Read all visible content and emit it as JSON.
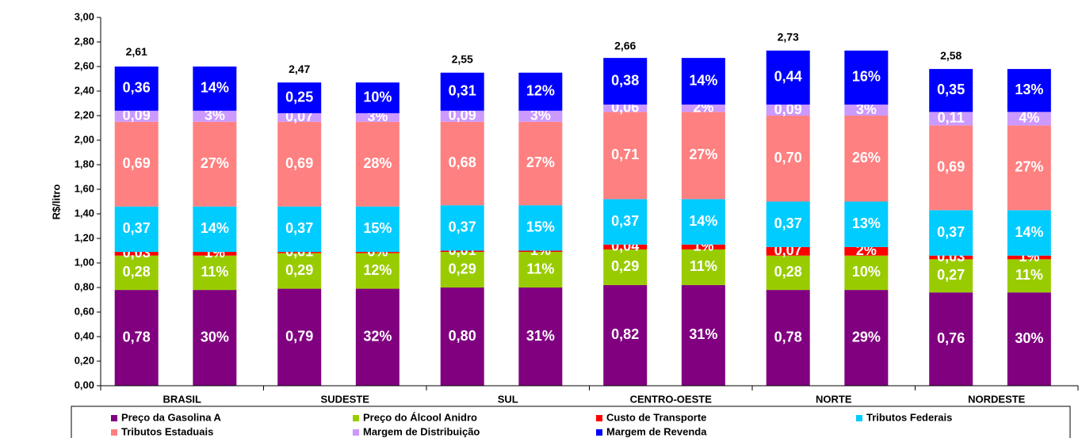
{
  "chart_data": {
    "type": "stacked_bar",
    "y_label": "R$/litro",
    "categories": [
      "BRASIL",
      "SUDESTE",
      "SUL",
      "CENTRO-OESTE",
      "NORTE",
      "NORDESTE"
    ],
    "ylim": [
      0,
      3
    ],
    "yticks": [
      {
        "value": 0,
        "label": "0,00"
      },
      {
        "value": 0.2,
        "label": "0,20"
      },
      {
        "value": 0.4,
        "label": "0,40"
      },
      {
        "value": 0.6,
        "label": "0,60"
      },
      {
        "value": 0.8,
        "label": "0,80"
      },
      {
        "value": 1,
        "label": "1,00"
      },
      {
        "value": 1.2,
        "label": "1,20"
      },
      {
        "value": 1.4,
        "label": "1,40"
      },
      {
        "value": 1.6,
        "label": "1,60"
      },
      {
        "value": 1.8,
        "label": "1,80"
      },
      {
        "value": 2,
        "label": "2,00"
      },
      {
        "value": 2.2,
        "label": "2,20"
      },
      {
        "value": 2.4,
        "label": "2,40"
      },
      {
        "value": 2.6,
        "label": "2,60"
      },
      {
        "value": 2.8,
        "label": "2,80"
      },
      {
        "value": 3,
        "label": "3,00"
      }
    ],
    "totals": [
      2.61,
      2.47,
      2.55,
      2.66,
      2.73,
      2.58
    ],
    "total_labels": [
      "2,61",
      "2,47",
      "2,55",
      "2,66",
      "2,73",
      "2,58"
    ],
    "series": [
      {
        "name": "Preço da Gasolina A",
        "color": "#800080",
        "values": [
          0.78,
          0.79,
          0.8,
          0.82,
          0.78,
          0.76
        ],
        "value_labels": [
          "0,78",
          "0,79",
          "0,80",
          "0,82",
          "0,78",
          "0,76"
        ],
        "shares": [
          30,
          32,
          31,
          31,
          29,
          30
        ],
        "share_labels": [
          "30%",
          "32%",
          "31%",
          "31%",
          "29%",
          "30%"
        ]
      },
      {
        "name": "Preço do Álcool Anidro",
        "color": "#99cc00",
        "values": [
          0.28,
          0.29,
          0.29,
          0.29,
          0.28,
          0.27
        ],
        "value_labels": [
          "0,28",
          "0,29",
          "0,29",
          "0,29",
          "0,28",
          "0,27"
        ],
        "shares": [
          11,
          12,
          11,
          11,
          10,
          11
        ],
        "share_labels": [
          "11%",
          "12%",
          "11%",
          "11%",
          "10%",
          "11%"
        ]
      },
      {
        "name": "Custo de Transporte",
        "color": "#ff0000",
        "values": [
          0.03,
          0.01,
          0.01,
          0.04,
          0.07,
          0.03
        ],
        "value_labels": [
          "0,03",
          "0,01",
          "0,01",
          "0,04",
          "0,07",
          "0,03"
        ],
        "shares": [
          1,
          0,
          1,
          1,
          2,
          1
        ],
        "share_labels": [
          "1%",
          "0%",
          "1%",
          "1%",
          "2%",
          "1%"
        ]
      },
      {
        "name": "Tributos Federais",
        "color": "#00ccff",
        "values": [
          0.37,
          0.37,
          0.37,
          0.37,
          0.37,
          0.37
        ],
        "value_labels": [
          "0,37",
          "0,37",
          "0,37",
          "0,37",
          "0,37",
          "0,37"
        ],
        "shares": [
          14,
          15,
          15,
          14,
          13,
          14
        ],
        "share_labels": [
          "14%",
          "15%",
          "15%",
          "14%",
          "13%",
          "14%"
        ]
      },
      {
        "name": "Tributos Estaduais",
        "color": "#ff8080",
        "values": [
          0.69,
          0.69,
          0.68,
          0.71,
          0.7,
          0.69
        ],
        "value_labels": [
          "0,69",
          "0,69",
          "0,68",
          "0,71",
          "0,70",
          "0,69"
        ],
        "shares": [
          27,
          28,
          27,
          27,
          26,
          27
        ],
        "share_labels": [
          "27%",
          "28%",
          "27%",
          "27%",
          "26%",
          "27%"
        ]
      },
      {
        "name": "Margem de Distribuição",
        "color": "#cc99ff",
        "values": [
          0.09,
          0.07,
          0.09,
          0.06,
          0.09,
          0.11
        ],
        "value_labels": [
          "0,09",
          "0,07",
          "0,09",
          "0,06",
          "0,09",
          "0,11"
        ],
        "shares": [
          3,
          3,
          3,
          2,
          3,
          4
        ],
        "share_labels": [
          "3%",
          "3%",
          "3%",
          "2%",
          "3%",
          "4%"
        ]
      },
      {
        "name": "Margem de Revenda",
        "color": "#0000ff",
        "values": [
          0.36,
          0.25,
          0.31,
          0.38,
          0.44,
          0.35
        ],
        "value_labels": [
          "0,36",
          "0,25",
          "0,31",
          "0,38",
          "0,44",
          "0,35"
        ],
        "shares": [
          14,
          10,
          12,
          14,
          16,
          13
        ],
        "share_labels": [
          "14%",
          "10%",
          "12%",
          "14%",
          "16%",
          "13%"
        ]
      }
    ]
  }
}
